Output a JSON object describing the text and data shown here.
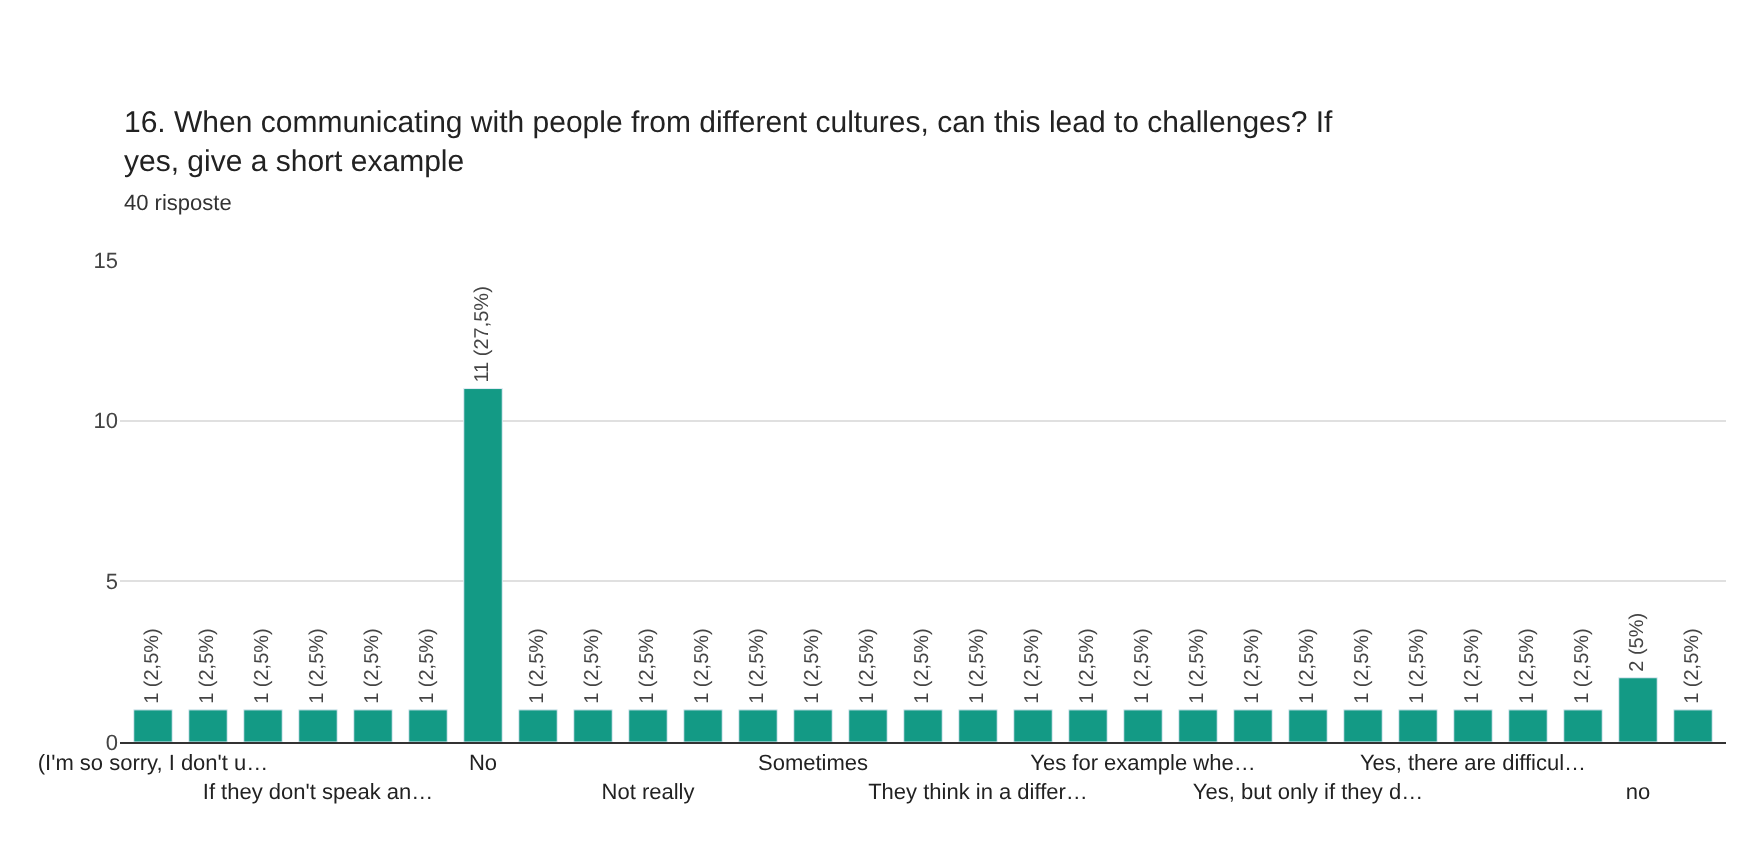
{
  "chart_data": {
    "type": "bar",
    "title": "16. When communicating with people from different cultures, can this lead to challenges? If yes, give a short example",
    "subtitle": "40 risposte",
    "categories": [
      "(I'm so sorry, I don't u…",
      null,
      null,
      "If they don't speak an…",
      null,
      null,
      "No",
      null,
      null,
      "Not really",
      null,
      null,
      "Sometimes",
      null,
      null,
      "They think in a differ…",
      null,
      null,
      "Yes for example whe…",
      null,
      null,
      "Yes, but only if they d…",
      null,
      null,
      "Yes, there are difficul…",
      null,
      null,
      "no",
      null
    ],
    "values": [
      1,
      1,
      1,
      1,
      1,
      1,
      11,
      1,
      1,
      1,
      1,
      1,
      1,
      1,
      1,
      1,
      1,
      1,
      1,
      1,
      1,
      1,
      1,
      1,
      1,
      1,
      1,
      2,
      1
    ],
    "value_labels": [
      "1 (2,5%)",
      "1 (2,5%)",
      "1 (2,5%)",
      "1 (2,5%)",
      "1 (2,5%)",
      "1 (2,5%)",
      "11 (27,5%)",
      "1 (2,5%)",
      "1 (2,5%)",
      "1 (2,5%)",
      "1 (2,5%)",
      "1 (2,5%)",
      "1 (2,5%)",
      "1 (2,5%)",
      "1 (2,5%)",
      "1 (2,5%)",
      "1 (2,5%)",
      "1 (2,5%)",
      "1 (2,5%)",
      "1 (2,5%)",
      "1 (2,5%)",
      "1 (2,5%)",
      "1 (2,5%)",
      "1 (2,5%)",
      "1 (2,5%)",
      "1 (2,5%)",
      "1 (2,5%)",
      "2 (5%)",
      "1 (2,5%)"
    ],
    "color": "#139a85",
    "ylim": [
      0,
      15
    ],
    "yticks": [
      0,
      5,
      10,
      15
    ],
    "grid": "y",
    "legend": false
  }
}
